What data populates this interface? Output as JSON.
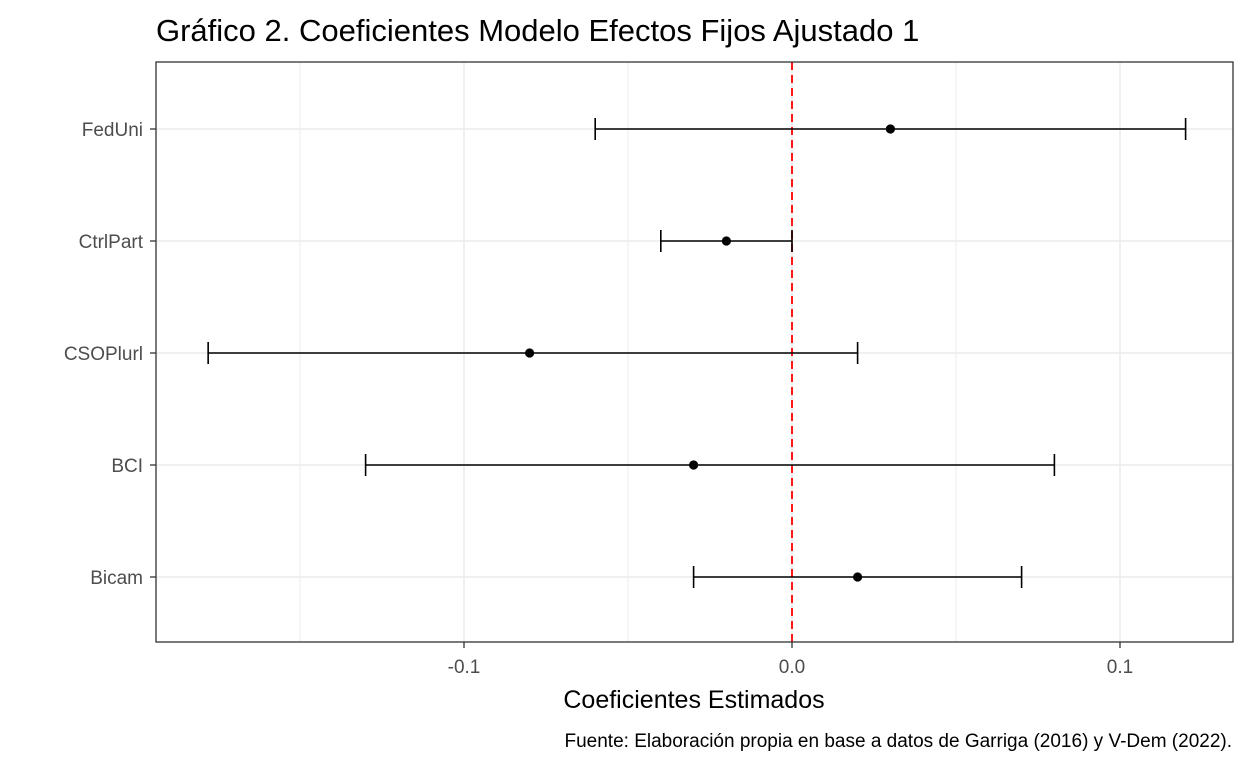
{
  "title": "Gráfico 2. Coeficientes Modelo Efectos Fijos Ajustado 1",
  "caption": "Fuente: Elaboración propia en base a datos de Garriga (2016) y V-Dem (2022).",
  "chart_data": {
    "type": "scatter",
    "subtype": "coefficient-plot-with-error-bars",
    "title": "Gráfico 2. Coeficientes Modelo Efectos Fijos Ajustado 1",
    "xlabel": "Coeficientes Estimados",
    "ylabel": "",
    "xlim": [
      -0.19,
      0.135
    ],
    "x_ticks": [
      -0.1,
      0.0,
      0.1
    ],
    "x_tick_labels": [
      "-0.1",
      "0.0",
      "0.1"
    ],
    "grid": true,
    "reference_line": {
      "x": 0,
      "style": "dashed",
      "color": "#ff0000"
    },
    "point_color": "#000000",
    "terms": [
      {
        "name": "FedUni",
        "estimate": 0.03,
        "low": -0.06,
        "high": 0.12
      },
      {
        "name": "CtrlPart",
        "estimate": -0.02,
        "low": -0.04,
        "high": 0.0
      },
      {
        "name": "CSOPlurl",
        "estimate": -0.08,
        "low": -0.178,
        "high": 0.02
      },
      {
        "name": "BCI",
        "estimate": -0.03,
        "low": -0.13,
        "high": 0.08
      },
      {
        "name": "Bicam",
        "estimate": 0.02,
        "low": -0.03,
        "high": 0.07
      }
    ]
  }
}
